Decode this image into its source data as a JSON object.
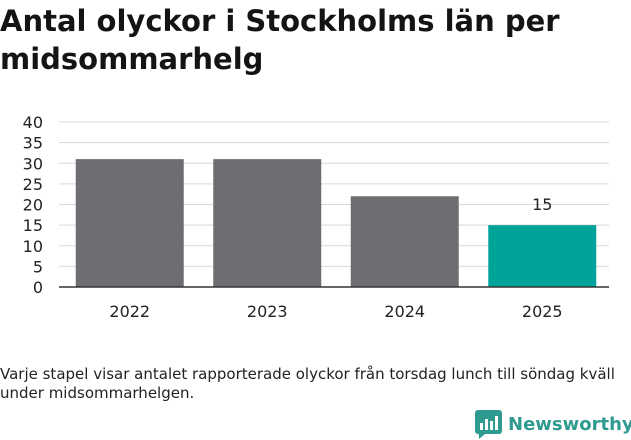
{
  "title": "Antal olyckor i Stockholms län per midsommarhelg",
  "footnote": "Varje stapel visar antalet rapporterade olyckor från torsdag lunch till söndag kväll under midsommarhelgen.",
  "brand": {
    "name": "Newsworthy",
    "icon": "newsworthy-logo-icon",
    "color": "#2f9a8f"
  },
  "chart_data": {
    "type": "bar",
    "categories": [
      "2022",
      "2023",
      "2024",
      "2025"
    ],
    "values": [
      31,
      31,
      22,
      15
    ],
    "bar_colors": [
      "#6e6d72",
      "#6e6d72",
      "#6e6d72",
      "#00a39a"
    ],
    "data_labels": [
      null,
      null,
      null,
      "15"
    ],
    "yticks": [
      "0",
      "5",
      "10",
      "15",
      "20",
      "25",
      "30",
      "35",
      "40"
    ],
    "ylim": [
      0,
      40
    ],
    "xlabel": "",
    "ylabel": "",
    "grid": true,
    "legend": "none"
  }
}
